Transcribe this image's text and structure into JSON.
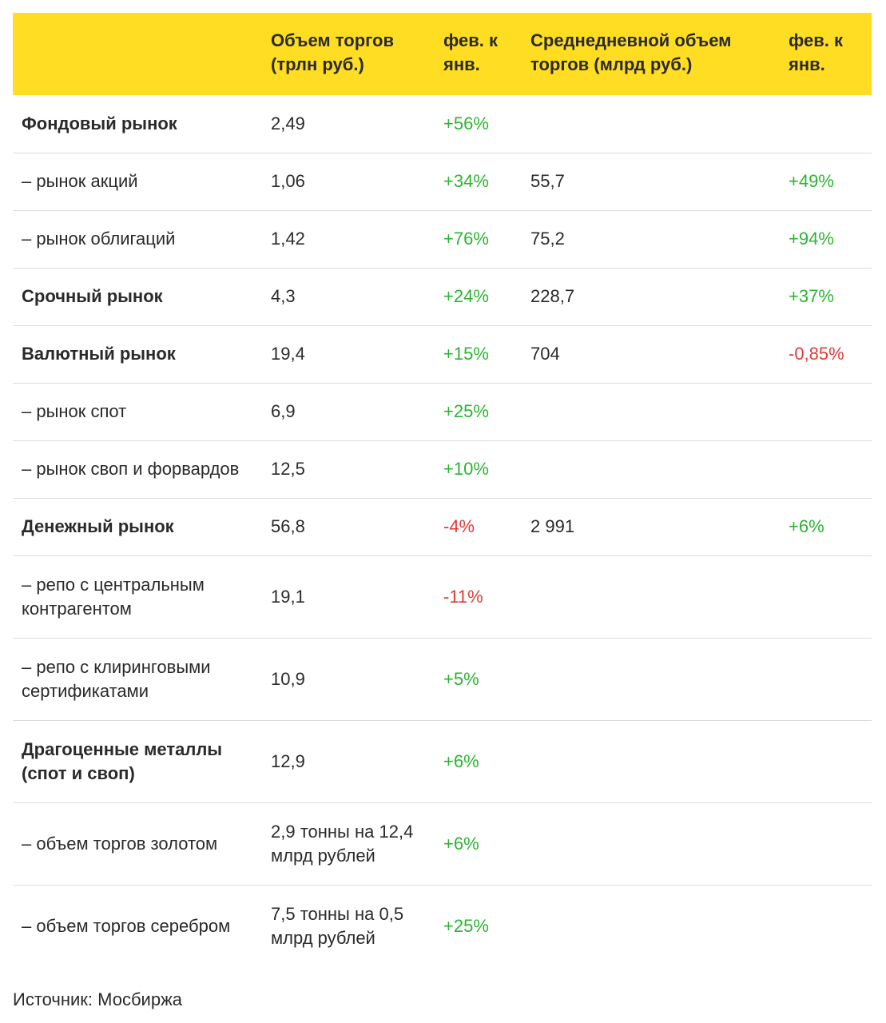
{
  "table": {
    "headers": [
      "",
      "Объем торгов (трлн руб.)",
      "фев. к янв.",
      "Среднедневной объем торгов (млрд руб.)",
      "фев. к янв."
    ],
    "header_color": "#ffdd22",
    "positive_color": "#2bb531",
    "negative_color": "#e23a36",
    "rows": [
      {
        "label": "Фондовый рынок",
        "bold": true,
        "volume": "2,49",
        "change": "+56%",
        "change_sign": "pos",
        "daily": "",
        "daily_change": "",
        "daily_change_sign": ""
      },
      {
        "label": "– рынок акций",
        "bold": false,
        "volume": "1,06",
        "change": "+34%",
        "change_sign": "pos",
        "daily": "55,7",
        "daily_change": "+49%",
        "daily_change_sign": "pos"
      },
      {
        "label": "– рынок облигаций",
        "bold": false,
        "volume": "1,42",
        "change": "+76%",
        "change_sign": "pos",
        "daily": "75,2",
        "daily_change": "+94%",
        "daily_change_sign": "pos"
      },
      {
        "label": "Срочный рынок",
        "bold": true,
        "volume": "4,3",
        "change": "+24%",
        "change_sign": "pos",
        "daily": "228,7",
        "daily_change": "+37%",
        "daily_change_sign": "pos"
      },
      {
        "label": "Валютный рынок",
        "bold": true,
        "volume": "19,4",
        "change": "+15%",
        "change_sign": "pos",
        "daily": "704",
        "daily_change": "-0,85%",
        "daily_change_sign": "neg"
      },
      {
        "label": "– рынок спот",
        "bold": false,
        "volume": "6,9",
        "change": "+25%",
        "change_sign": "pos",
        "daily": "",
        "daily_change": "",
        "daily_change_sign": ""
      },
      {
        "label": "– рынок своп и форвардов",
        "bold": false,
        "volume": "12,5",
        "change": "+10%",
        "change_sign": "pos",
        "daily": "",
        "daily_change": "",
        "daily_change_sign": ""
      },
      {
        "label": "Денежный рынок",
        "bold": true,
        "volume": "56,8",
        "change": "-4%",
        "change_sign": "neg",
        "daily": "2 991",
        "daily_change": "+6%",
        "daily_change_sign": "pos"
      },
      {
        "label": "– репо с центральным контрагентом",
        "bold": false,
        "volume": "19,1",
        "change": "-11%",
        "change_sign": "neg",
        "daily": "",
        "daily_change": "",
        "daily_change_sign": ""
      },
      {
        "label": "– репо с клиринговыми сертификатами",
        "bold": false,
        "volume": "10,9",
        "change": "+5%",
        "change_sign": "pos",
        "daily": "",
        "daily_change": "",
        "daily_change_sign": ""
      },
      {
        "label": "Драгоценные металлы (спот и своп)",
        "bold": true,
        "volume": "12,9",
        "change": "+6%",
        "change_sign": "pos",
        "daily": "",
        "daily_change": "",
        "daily_change_sign": ""
      },
      {
        "label": "– объем торгов золотом",
        "bold": false,
        "volume": "2,9 тонны на 12,4 млрд рублей",
        "change": "+6%",
        "change_sign": "pos",
        "daily": "",
        "daily_change": "",
        "daily_change_sign": ""
      },
      {
        "label": "– объем торгов серебром",
        "bold": false,
        "volume": "7,5 тонны на 0,5 млрд рублей",
        "change": "+25%",
        "change_sign": "pos",
        "daily": "",
        "daily_change": "",
        "daily_change_sign": ""
      }
    ]
  },
  "source": "Источник: Мосбиржа"
}
